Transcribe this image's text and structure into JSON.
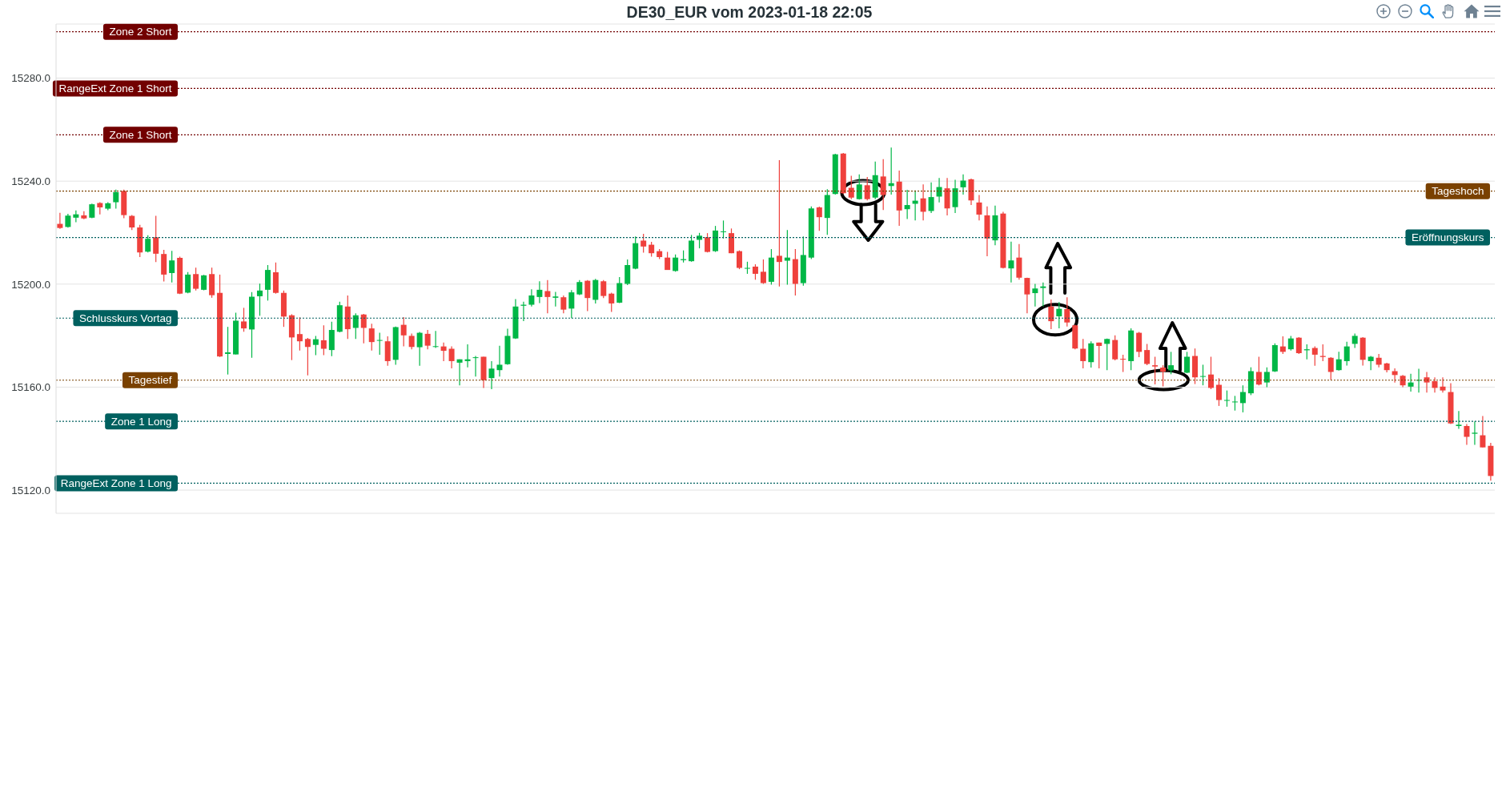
{
  "chart_data": {
    "type": "candlestick",
    "title": "DE30_EUR vom 2023-01-18 22:05",
    "categories": [
      null,
      null,
      null,
      null,
      null,
      null,
      null,
      null,
      null,
      null,
      null,
      null,
      null,
      null,
      null,
      null,
      null,
      null,
      null,
      null,
      null,
      null,
      null,
      null,
      null,
      null,
      null,
      null,
      null,
      null,
      null,
      null,
      null,
      null,
      null,
      null,
      null,
      null,
      null,
      null,
      null,
      null,
      null,
      null,
      null,
      null,
      null,
      null,
      null,
      null,
      null,
      null,
      null,
      null,
      null,
      null,
      null,
      null,
      null,
      null,
      null,
      null,
      null,
      null,
      null,
      null,
      null,
      null,
      null,
      null,
      null,
      null,
      null,
      null,
      null,
      null,
      null,
      null,
      null,
      null,
      null,
      null,
      null,
      null,
      null,
      null,
      null,
      null,
      null,
      null,
      null,
      null,
      null,
      null,
      null,
      null,
      null,
      null,
      null,
      null,
      null,
      null,
      null,
      null,
      null,
      null,
      null,
      null,
      null,
      null,
      null,
      null,
      null,
      null,
      null,
      null,
      null,
      null,
      null,
      null,
      null,
      null,
      null,
      null,
      null,
      null,
      null,
      null,
      null,
      null,
      null,
      null,
      null,
      null,
      null,
      null,
      null,
      null,
      null,
      null,
      null,
      null,
      null,
      null,
      null,
      null,
      null,
      null,
      null,
      null,
      null,
      null,
      null,
      null,
      null,
      null,
      null,
      null,
      null,
      null,
      null,
      null,
      null,
      null,
      null,
      null,
      null,
      null,
      null,
      null,
      null,
      null,
      null,
      null,
      null,
      null,
      null,
      null,
      null,
      null
    ],
    "ohlc": [
      [
        15223.4,
        15227.7,
        15221.5,
        15221.8
      ],
      [
        15222.2,
        15227.3,
        15221.9,
        15226.6
      ],
      [
        15225.8,
        15228.6,
        15224.0,
        15227.1
      ],
      [
        15226.7,
        15228.3,
        15225.2,
        15225.5
      ],
      [
        15225.8,
        15231.3,
        15225.6,
        15231.0
      ],
      [
        15231.5,
        15231.8,
        15227.1,
        15229.8
      ],
      [
        15229.3,
        15231.8,
        15228.7,
        15231.4
      ],
      [
        15231.8,
        15236.7,
        15229.3,
        15235.7
      ],
      [
        15236.2,
        15236.7,
        15225.6,
        15226.8
      ],
      [
        15226.5,
        15226.8,
        15221.0,
        15222.0
      ],
      [
        15222.0,
        15223.0,
        15210.5,
        15212.3
      ],
      [
        15212.6,
        15219.0,
        15212.3,
        15217.6
      ],
      [
        15218.2,
        15226.5,
        15208.6,
        15211.8
      ],
      [
        15211.7,
        15213.3,
        15201.0,
        15203.7
      ],
      [
        15204.3,
        15212.9,
        15200.6,
        15209.2
      ],
      [
        15210.2,
        15210.7,
        15196.1,
        15196.3
      ],
      [
        15196.7,
        15204.7,
        15196.4,
        15203.7
      ],
      [
        15203.9,
        15206.4,
        15197.5,
        15198.2
      ],
      [
        15197.8,
        15203.6,
        15197.6,
        15203.4
      ],
      [
        15203.9,
        15206.4,
        15194.7,
        15195.7
      ],
      [
        15196.6,
        15203.7,
        15171.7,
        15171.9
      ],
      [
        15172.9,
        15183.4,
        15164.9,
        15173.5
      ],
      [
        15172.7,
        15188.9,
        15172.7,
        15185.8
      ],
      [
        15185.5,
        15190.8,
        15181.5,
        15182.8
      ],
      [
        15182.4,
        15196.9,
        15171.4,
        15195.1
      ],
      [
        15195.3,
        15200.2,
        15187.7,
        15197.5
      ],
      [
        15197.8,
        15207.4,
        15193.6,
        15205.5
      ],
      [
        15204.6,
        15208.4,
        15196.3,
        15196.6
      ],
      [
        15196.6,
        15197.5,
        15183.4,
        15187.4
      ],
      [
        15187.9,
        15188.3,
        15170.5,
        15179.3
      ],
      [
        15180.6,
        15187.1,
        15174.2,
        15177.8
      ],
      [
        15178.7,
        15179.1,
        15164.6,
        15175.6
      ],
      [
        15176.4,
        15179.9,
        15172.4,
        15178.6
      ],
      [
        15178.2,
        15184.0,
        15172.4,
        15174.9
      ],
      [
        15174.4,
        15185.4,
        15172.0,
        15182.2
      ],
      [
        15181.5,
        15193.2,
        15181.3,
        15191.8
      ],
      [
        15191.3,
        15195.6,
        15178.7,
        15182.5
      ],
      [
        15183.0,
        15188.7,
        15178.7,
        15187.9
      ],
      [
        15188.2,
        15188.4,
        15177.0,
        15183.0
      ],
      [
        15182.8,
        15184.6,
        15174.2,
        15177.5
      ],
      [
        15178.0,
        15181.1,
        15172.6,
        15178.3
      ],
      [
        15177.8,
        15179.7,
        15168.3,
        15170.1
      ],
      [
        15170.6,
        15183.5,
        15168.7,
        15183.3
      ],
      [
        15184.2,
        15187.2,
        15175.8,
        15180.1
      ],
      [
        15179.9,
        15180.8,
        15174.7,
        15175.6
      ],
      [
        15175.5,
        15181.4,
        15168.3,
        15181.1
      ],
      [
        15180.7,
        15182.2,
        15174.7,
        15176.1
      ],
      [
        15175.6,
        15181.8,
        15175.2,
        15175.9
      ],
      [
        15175.8,
        15177.3,
        15170.1,
        15174.1
      ],
      [
        15174.9,
        15175.8,
        15167.3,
        15170.1
      ],
      [
        15169.5,
        15170.8,
        15160.7,
        15170.8
      ],
      [
        15170.1,
        15176.6,
        15167.7,
        15170.8
      ],
      [
        15171.3,
        15172.1,
        15164.1,
        15171.6
      ],
      [
        15171.8,
        15171.8,
        15159.7,
        15162.7
      ],
      [
        15163.5,
        15170.1,
        15159.2,
        15167.2
      ],
      [
        15166.6,
        15176.1,
        15164.1,
        15168.7
      ],
      [
        15168.9,
        15182.7,
        15168.7,
        15179.9
      ],
      [
        15178.9,
        15194.2,
        15178.7,
        15191.3
      ],
      [
        15191.6,
        15193.2,
        15185.6,
        15192.0
      ],
      [
        15192.0,
        15198.0,
        15191.3,
        15195.6
      ],
      [
        15195.0,
        15201.1,
        15192.6,
        15197.8
      ],
      [
        15197.3,
        15201.6,
        15188.7,
        15195.0
      ],
      [
        15194.7,
        15197.0,
        15191.3,
        15195.2
      ],
      [
        15194.9,
        15195.6,
        15188.7,
        15190.1
      ],
      [
        15190.5,
        15197.7,
        15186.8,
        15196.8
      ],
      [
        15196.0,
        15201.6,
        15195.7,
        15200.8
      ],
      [
        15201.3,
        15201.6,
        15189.5,
        15194.6
      ],
      [
        15193.9,
        15202.0,
        15192.5,
        15201.6
      ],
      [
        15201.1,
        15201.6,
        15194.6,
        15195.4
      ],
      [
        15196.3,
        15196.7,
        15189.2,
        15192.5
      ],
      [
        15192.8,
        15202.7,
        15192.6,
        15200.4
      ],
      [
        15200.1,
        15209.6,
        15199.6,
        15207.4
      ],
      [
        15206.0,
        15218.5,
        15205.8,
        15215.9
      ],
      [
        15216.9,
        15219.5,
        15212.2,
        15214.6
      ],
      [
        15215.3,
        15216.4,
        15210.7,
        15212.0
      ],
      [
        15212.8,
        15213.6,
        15209.7,
        15210.5
      ],
      [
        15210.3,
        15212.5,
        15205.5,
        15205.5
      ],
      [
        15205.1,
        15211.5,
        15204.8,
        15210.3
      ],
      [
        15209.3,
        15213.1,
        15208.4,
        15209.7
      ],
      [
        15208.9,
        15219.1,
        15208.7,
        15216.9
      ],
      [
        15217.2,
        15219.9,
        15213.9,
        15218.8
      ],
      [
        15218.2,
        15219.8,
        15212.3,
        15212.5
      ],
      [
        15212.8,
        15222.6,
        15212.5,
        15220.8
      ],
      [
        15220.2,
        15224.7,
        15217.7,
        15220.5
      ],
      [
        15219.8,
        15221.6,
        15212.0,
        15212.0
      ],
      [
        15212.8,
        15213.1,
        15205.8,
        15206.3
      ],
      [
        15206.0,
        15208.7,
        15204.0,
        15206.3
      ],
      [
        15206.8,
        15207.7,
        15201.7,
        15204.0
      ],
      [
        15204.8,
        15209.6,
        15200.1,
        15200.4
      ],
      [
        15200.9,
        15213.6,
        15199.8,
        15210.3
      ],
      [
        15211.0,
        15248.1,
        15199.1,
        15208.6
      ],
      [
        15209.1,
        15221.0,
        15199.8,
        15210.3
      ],
      [
        15209.7,
        15213.6,
        15195.6,
        15200.1
      ],
      [
        15200.4,
        15218.5,
        15199.4,
        15211.3
      ],
      [
        15210.3,
        15230.2,
        15209.7,
        15229.4
      ],
      [
        15229.8,
        15230.1,
        15220.7,
        15226.0
      ],
      [
        15225.7,
        15236.9,
        15219.1,
        15234.6
      ],
      [
        15235.0,
        15250.6,
        15234.8,
        15250.4
      ],
      [
        15250.7,
        15250.9,
        15235.0,
        15235.3
      ],
      [
        15237.4,
        15242.1,
        15233.0,
        15233.6
      ],
      [
        15233.0,
        15242.6,
        15232.8,
        15238.7
      ],
      [
        15238.4,
        15241.6,
        15232.5,
        15233.0
      ],
      [
        15233.6,
        15247.6,
        15233.0,
        15242.3
      ],
      [
        15241.8,
        15248.5,
        15228.8,
        15234.6
      ],
      [
        15238.1,
        15253.0,
        15234.8,
        15239.2
      ],
      [
        15239.8,
        15244.1,
        15222.6,
        15228.6
      ],
      [
        15229.1,
        15236.6,
        15225.3,
        15230.7
      ],
      [
        15231.2,
        15236.4,
        15224.7,
        15232.4
      ],
      [
        15233.3,
        15238.7,
        15224.7,
        15228.1
      ],
      [
        15228.4,
        15239.5,
        15227.6,
        15233.8
      ],
      [
        15234.0,
        15241.2,
        15231.7,
        15237.7
      ],
      [
        15237.2,
        15241.2,
        15226.7,
        15229.4
      ],
      [
        15229.9,
        15240.5,
        15227.6,
        15237.2
      ],
      [
        15237.6,
        15242.6,
        15234.8,
        15240.2
      ],
      [
        15240.7,
        15241.0,
        15230.7,
        15232.5
      ],
      [
        15231.7,
        15234.6,
        15224.7,
        15227.0
      ],
      [
        15226.7,
        15230.2,
        15210.8,
        15217.7
      ],
      [
        15217.0,
        15230.5,
        15215.1,
        15226.7
      ],
      [
        15227.4,
        15228.1,
        15206.1,
        15206.3
      ],
      [
        15206.1,
        15216.5,
        15200.6,
        15209.2
      ],
      [
        15210.3,
        15215.6,
        15201.7,
        15202.5
      ],
      [
        15202.4,
        15202.5,
        15188.7,
        15196.0
      ],
      [
        15196.5,
        15200.1,
        15191.3,
        15198.3
      ],
      [
        15198.5,
        15200.6,
        15191.3,
        15199.1
      ],
      [
        15191.3,
        15194.0,
        15182.5,
        15185.6
      ],
      [
        15187.5,
        15193.0,
        15182.8,
        15190.4
      ],
      [
        15190.3,
        15194.9,
        15183.5,
        15185.1
      ],
      [
        15184.0,
        15184.2,
        15174.7,
        15175.0
      ],
      [
        15174.9,
        15178.7,
        15167.3,
        15170.1
      ],
      [
        15169.7,
        15177.8,
        15167.6,
        15177.0
      ],
      [
        15177.3,
        15177.3,
        15167.3,
        15176.0
      ],
      [
        15176.8,
        15178.9,
        15166.6,
        15178.7
      ],
      [
        15178.3,
        15180.1,
        15170.4,
        15170.8
      ],
      [
        15171.0,
        15172.6,
        15165.9,
        15170.7
      ],
      [
        15170.1,
        15182.8,
        15166.6,
        15182.0
      ],
      [
        15181.1,
        15181.4,
        15171.6,
        15173.7
      ],
      [
        15174.4,
        15176.8,
        15168.5,
        15169.0
      ],
      [
        15168.5,
        15171.8,
        15161.1,
        15168.0
      ],
      [
        15167.6,
        15168.5,
        15160.3,
        15166.0
      ],
      [
        15166.5,
        15173.7,
        15165.0,
        15168.5
      ],
      null,
      [
        15165.6,
        15173.7,
        15165.4,
        15171.8
      ],
      [
        15172.1,
        15175.0,
        15161.2,
        15163.8
      ],
      [
        15164.0,
        15168.7,
        15160.7,
        15164.3
      ],
      [
        15164.9,
        15171.8,
        15159.2,
        15159.7
      ],
      [
        15160.9,
        15163.5,
        15152.7,
        15155.0
      ],
      [
        15154.7,
        15158.7,
        15152.4,
        15155.0
      ],
      [
        15154.1,
        15156.6,
        15150.9,
        15154.4
      ],
      [
        15153.8,
        15160.7,
        15150.2,
        15158.1
      ],
      [
        15157.6,
        15167.7,
        15156.9,
        15166.2
      ],
      [
        15165.9,
        15171.8,
        15160.7,
        15161.0
      ],
      [
        15161.8,
        15167.7,
        15160.0,
        15165.9
      ],
      [
        15166.1,
        15177.0,
        15165.9,
        15176.3
      ],
      [
        15175.8,
        15179.7,
        15172.9,
        15173.7
      ],
      [
        15174.7,
        15179.9,
        15174.2,
        15178.9
      ],
      [
        15179.2,
        15179.4,
        15172.9,
        15173.2
      ],
      [
        15174.3,
        15176.6,
        15170.8,
        15174.7
      ],
      [
        15175.2,
        15175.8,
        15168.3,
        15172.6
      ],
      [
        15172.1,
        15176.6,
        15170.1,
        15171.7
      ],
      [
        15171.4,
        15171.6,
        15162.8,
        15165.9
      ],
      [
        15166.6,
        15173.7,
        15166.4,
        15170.8
      ],
      [
        15170.1,
        15177.6,
        15168.4,
        15175.8
      ],
      [
        15176.8,
        15180.8,
        15175.2,
        15179.9
      ],
      [
        15179.2,
        15179.4,
        15168.4,
        15170.6
      ],
      [
        15170.1,
        15172.1,
        15166.6,
        15171.8
      ],
      [
        15171.4,
        15172.9,
        15167.7,
        15168.7
      ],
      [
        15169.2,
        15169.5,
        15165.7,
        15166.6
      ],
      [
        15166.2,
        15167.3,
        15161.8,
        15164.7
      ],
      [
        15164.4,
        15164.7,
        15160.0,
        15160.7
      ],
      [
        15160.2,
        15165.2,
        15158.3,
        15161.8
      ],
      [
        15162.5,
        15167.1,
        15157.9,
        15162.8
      ],
      [
        15163.8,
        15165.9,
        15157.9,
        15161.8
      ],
      [
        15162.3,
        15163.8,
        15157.9,
        15159.7
      ],
      [
        15160.2,
        15163.8,
        15157.9,
        15158.7
      ],
      [
        15158.1,
        15161.5,
        15145.7,
        15145.9
      ],
      [
        15144.9,
        15150.7,
        15143.8,
        15145.4
      ],
      [
        15144.9,
        15145.7,
        15137.6,
        15140.7
      ],
      [
        15141.9,
        15146.7,
        15137.6,
        15142.3
      ],
      [
        15141.3,
        15148.8,
        15136.6,
        15136.6
      ],
      [
        15137.2,
        15138.4,
        15123.7,
        15125.5
      ]
    ],
    "colors": [
      "#ef403c",
      "#00b746",
      "#00b746",
      "#ef403c",
      "#00b746",
      "#ef403c",
      "#00b746",
      "#00b746",
      "#ef403c",
      "#ef403c",
      "#ef403c",
      "#00b746",
      "#ef403c",
      "#ef403c",
      "#00b746",
      "#ef403c",
      "#00b746",
      "#ef403c",
      "#00b746",
      "#ef403c",
      "#ef403c",
      "#00b746",
      "#00b746",
      "#ef403c",
      "#00b746",
      "#00b746",
      "#00b746",
      "#ef403c",
      "#ef403c",
      "#ef403c",
      "#ef403c",
      "#ef403c",
      "#00b746",
      "#ef403c",
      "#00b746",
      "#00b746",
      "#ef403c",
      "#00b746",
      "#ef403c",
      "#ef403c",
      "#00b746",
      "#ef403c",
      "#00b746",
      "#ef403c",
      "#ef403c",
      "#00b746",
      "#ef403c",
      "#00b746",
      "#ef403c",
      "#ef403c",
      "#00b746",
      "#00b746",
      "#00b746",
      "#ef403c",
      "#00b746",
      "#00b746",
      "#00b746",
      "#00b746",
      "#00b746",
      "#00b746",
      "#00b746",
      "#ef403c",
      "#00b746",
      "#ef403c",
      "#00b746",
      "#00b746",
      "#ef403c",
      "#00b746",
      "#ef403c",
      "#ef403c",
      "#00b746",
      "#00b746",
      "#00b746",
      "#ef403c",
      "#ef403c",
      "#ef403c",
      "#ef403c",
      "#00b746",
      "#00b746",
      "#00b746",
      "#00b746",
      "#ef403c",
      "#00b746",
      "#00b746",
      "#ef403c",
      "#ef403c",
      "#00b746",
      "#ef403c",
      "#ef403c",
      "#00b746",
      "#ef403c",
      "#00b746",
      "#ef403c",
      "#00b746",
      "#00b746",
      "#ef403c",
      "#00b746",
      "#00b746",
      "#ef403c",
      "#ef403c",
      "#00b746",
      "#ef403c",
      "#00b746",
      "#ef403c",
      "#00b746",
      "#ef403c",
      "#00b746",
      "#00b746",
      "#ef403c",
      "#00b746",
      "#00b746",
      "#ef403c",
      "#00b746",
      "#00b746",
      "#ef403c",
      "#ef403c",
      "#ef403c",
      "#00b746",
      "#ef403c",
      "#00b746",
      "#ef403c",
      "#ef403c",
      "#00b746",
      "#00b746",
      "#ef403c",
      "#00b746",
      "#ef403c",
      "#ef403c",
      "#ef403c",
      "#00b746",
      "#ef403c",
      "#00b746",
      "#ef403c",
      "#ef403c",
      "#00b746",
      "#ef403c",
      "#ef403c",
      "#ef403c",
      "#ef403c",
      "#00b746",
      null,
      "#00b746",
      "#ef403c",
      "#00b746",
      "#ef403c",
      "#ef403c",
      "#00b746",
      "#00b746",
      "#00b746",
      "#00b746",
      "#ef403c",
      "#00b746",
      "#00b746",
      "#ef403c",
      "#00b746",
      "#ef403c",
      "#00b746",
      "#ef403c",
      "#ef403c",
      "#ef403c",
      "#00b746",
      "#00b746",
      "#00b746",
      "#ef403c",
      "#00b746",
      "#ef403c",
      "#ef403c",
      "#ef403c",
      "#ef403c",
      "#00b746",
      "#00b746",
      "#ef403c",
      "#ef403c",
      "#ef403c",
      "#ef403c",
      "#00b746",
      "#ef403c",
      "#00b746",
      "#ef403c",
      "#ef403c"
    ],
    "ylim": [
      15111,
      15301
    ],
    "yticks": [
      {
        "value": 15120,
        "label": "15120.0"
      },
      {
        "value": 15160,
        "label": "15160.0"
      },
      {
        "value": 15200,
        "label": "15200.0"
      },
      {
        "value": 15240,
        "label": "15240.0"
      },
      {
        "value": 15280,
        "label": "15280.0"
      }
    ],
    "grid": "y",
    "tick_labels": "y",
    "ref_lines": [
      {
        "axis": "y",
        "value": 15298,
        "label": "Zone 2 Short",
        "color": "#720000",
        "line_style": "dotted"
      },
      {
        "axis": "y",
        "value": 15276,
        "label": "RangeExt Zone 1 Short",
        "color": "#720000",
        "line_style": "dotted"
      },
      {
        "axis": "y",
        "value": 15258,
        "label": "Zone 1 Short",
        "color": "#720000",
        "line_style": "dotted"
      },
      {
        "axis": "y",
        "value": 15236.1,
        "label": "Tageshoch",
        "color": "#7a4100",
        "line_style": "dotted"
      },
      {
        "axis": "y",
        "value": 15218.1,
        "label": "Eröffnungskurs",
        "color": "#00605f",
        "line_style": "dotted"
      },
      {
        "axis": "y",
        "value": 15186.8,
        "label": "Schlusskurs Vortag",
        "color": "#00605f",
        "line_style": "dotted"
      },
      {
        "axis": "y",
        "value": 15162.7,
        "label": "Tagestief",
        "color": "#7a4100",
        "line_style": "dotted"
      },
      {
        "axis": "y",
        "value": 15146.7,
        "label": "Zone 1 Long",
        "color": "#00605f",
        "line_style": "dotted"
      },
      {
        "axis": "y",
        "value": 15122.7,
        "label": "RangeExt Zone 1 Long",
        "color": "#00605f",
        "line_style": "dotted"
      }
    ]
  }
}
